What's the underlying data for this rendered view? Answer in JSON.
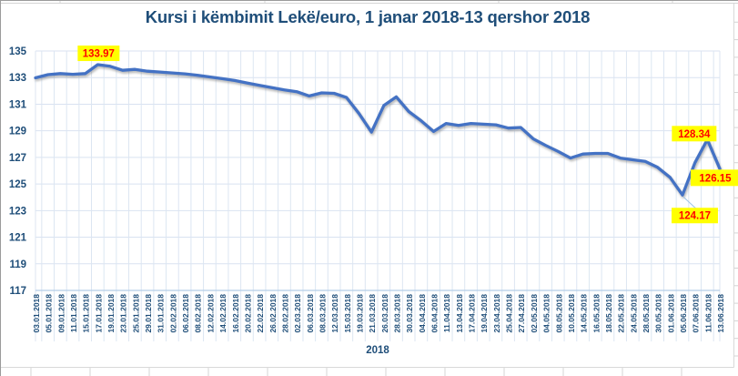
{
  "chart_data": {
    "type": "line",
    "title": "Kursi i këmbimit Lekë/euro, 1 janar 2018-13 qershor 2018",
    "xlabel": "2018",
    "ylabel": "",
    "ylim": [
      117,
      135
    ],
    "ytick_step": 2,
    "grid": true,
    "legend": false,
    "series_name": "Kursi i këmbimit Lekë/euro",
    "categories": [
      "03.01.2018",
      "05.01.2018",
      "09.01.2018",
      "11.01.2018",
      "15.01.2018",
      "17.01.2018",
      "19.01.2018",
      "23.01.2018",
      "25.01.2018",
      "29.01.2018",
      "31.01.2018",
      "02.02.2018",
      "06.02.2018",
      "08.02.2018",
      "12.02.2018",
      "14.02.2018",
      "16.02.2018",
      "20.02.2018",
      "22.02.2018",
      "26.02.2018",
      "28.02.2018",
      "02.03.2018",
      "06.03.2018",
      "08.03.2018",
      "12.03.2018",
      "15.03.2018",
      "19.03.2018",
      "21.03.2018",
      "26.03.2018",
      "28.03.2018",
      "30.03.2018",
      "04.04.2018",
      "06.04.2018",
      "11.04.2018",
      "13.04.2018",
      "17.04.2018",
      "19.04.2018",
      "23.04.2018",
      "25.04.2018",
      "27.04.2018",
      "02.05.2018",
      "04.05.2018",
      "08.05.2018",
      "10.05.2018",
      "14.05.2018",
      "16.05.2018",
      "18.05.2018",
      "22.05.2018",
      "24.05.2018",
      "28.05.2018",
      "30.05.2018",
      "01.06.2018",
      "05.06.2018",
      "07.06.2018",
      "11.06.2018",
      "13.06.2018"
    ],
    "values": [
      132.98,
      133.22,
      133.3,
      133.25,
      133.3,
      133.97,
      133.85,
      133.55,
      133.62,
      133.48,
      133.42,
      133.35,
      133.28,
      133.18,
      133.05,
      132.92,
      132.78,
      132.6,
      132.42,
      132.24,
      132.08,
      131.94,
      131.62,
      131.85,
      131.82,
      131.5,
      130.3,
      128.9,
      130.9,
      131.55,
      130.45,
      129.75,
      128.95,
      129.55,
      129.4,
      129.55,
      129.5,
      129.45,
      129.2,
      129.25,
      128.4,
      127.9,
      127.45,
      126.95,
      127.25,
      127.3,
      127.3,
      126.95,
      126.82,
      126.7,
      126.25,
      125.5,
      124.17,
      126.6,
      128.34,
      126.15
    ],
    "annotations": [
      {
        "text": "133.97",
        "category": "17.01.2018",
        "value": 133.97,
        "placement": "above",
        "leader": false
      },
      {
        "text": "128.34",
        "category": "11.06.2018",
        "value": 128.34,
        "placement": "above-left",
        "leader": false
      },
      {
        "text": "126.15",
        "category": "13.06.2018",
        "value": 126.15,
        "placement": "right-below",
        "leader": false
      },
      {
        "text": "124.17",
        "category": "05.06.2018",
        "value": 124.17,
        "placement": "below",
        "leader": true
      }
    ],
    "colors": {
      "line": "#4472C4",
      "annotation_bg": "#FFFF00",
      "annotation_text": "#FF0000",
      "axis_text": "#1F4E79",
      "title_text": "#1F4E79",
      "gridline_h": "#D9E2F1",
      "gridline_v": "#DCE6F2",
      "axis_line": "#B4CDE8",
      "leader_line": "#9DC3E6",
      "chart_border": "#D9D9D9",
      "worksheet_line": "#D4D4D4",
      "background": "#FFFFFF"
    }
  }
}
